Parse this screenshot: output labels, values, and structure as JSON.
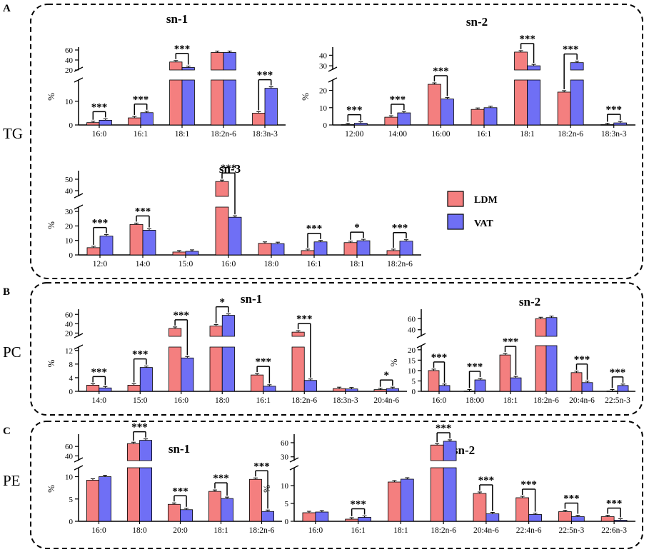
{
  "colors": {
    "ldm": "#f47f7f",
    "vat": "#6f6ff5",
    "axis": "#000000"
  },
  "legend": [
    {
      "name": "LDM",
      "color": "#f47f7f"
    },
    {
      "name": "VAT",
      "color": "#6f6ff5"
    }
  ],
  "panel_letters": [
    "A",
    "B",
    "C"
  ],
  "row_labels": {
    "tg": "TG",
    "pc": "PC",
    "pe": "PE"
  },
  "y_axis_label": "%",
  "chart_data": [
    {
      "id": "tg_sn1",
      "type": "bar",
      "title": "sn-1",
      "categories": [
        "16:0",
        "16:1",
        "18:1",
        "18:2n-6",
        "18:3n-3"
      ],
      "series": [
        {
          "name": "LDM",
          "values": [
            1,
            3,
            36,
            55,
            5
          ]
        },
        {
          "name": "VAT",
          "values": [
            2,
            5.2,
            25,
            55,
            15.5
          ]
        }
      ],
      "upper_ticks": [
        20,
        40,
        60
      ],
      "lower_ticks": [
        0,
        10
      ],
      "upper_range": [
        20,
        60
      ],
      "lower_range": [
        0,
        19
      ],
      "significance": [
        "***",
        "***",
        "***",
        "",
        "***"
      ]
    },
    {
      "id": "tg_sn2",
      "type": "bar",
      "title": "sn-2",
      "categories": [
        "12:00",
        "14:00",
        "16:00",
        "16:1",
        "18:1",
        "18:2n-6",
        "18:3n-3"
      ],
      "series": [
        {
          "name": "LDM",
          "values": [
            0.2,
            4.5,
            23.5,
            9,
            43,
            19,
            0.2
          ]
        },
        {
          "name": "VAT",
          "values": [
            1,
            7,
            15,
            10,
            30,
            33,
            1.2
          ]
        }
      ],
      "upper_ticks": [
        30,
        40
      ],
      "lower_ticks": [
        0,
        10,
        20
      ],
      "upper_range": [
        26,
        45
      ],
      "lower_range": [
        0,
        26
      ],
      "significance": [
        "***",
        "***",
        "***",
        "",
        "***",
        "***",
        "***"
      ]
    },
    {
      "id": "tg_sn3",
      "type": "bar",
      "title": "sn-3",
      "categories": [
        "12:0",
        "14:0",
        "15:0",
        "16:0",
        "18:0",
        "16:1",
        "18:1",
        "18:2n-6"
      ],
      "series": [
        {
          "name": "LDM",
          "values": [
            5,
            21,
            2,
            48,
            8,
            3,
            8.5,
            3
          ]
        },
        {
          "name": "VAT",
          "values": [
            13,
            17,
            2.5,
            26,
            7.8,
            9,
            9.8,
            9.5
          ]
        }
      ],
      "upper_ticks": [
        40,
        50
      ],
      "lower_ticks": [
        0,
        10,
        20,
        30
      ],
      "upper_range": [
        35,
        55
      ],
      "lower_range": [
        0,
        33
      ],
      "significance": [
        "***",
        "***",
        "",
        "***",
        "",
        "***",
        "*",
        "***"
      ]
    },
    {
      "id": "pc_sn1",
      "type": "bar",
      "title": "sn-1",
      "categories": [
        "14:0",
        "15:0",
        "16:0",
        "18:0",
        "16:1",
        "18:2n-6",
        "18:3n-3",
        "20:4n-6"
      ],
      "series": [
        {
          "name": "LDM",
          "values": [
            1.8,
            1.8,
            30,
            35,
            4.8,
            22,
            0.8,
            0.5
          ]
        },
        {
          "name": "VAT",
          "values": [
            1,
            7,
            9.8,
            58,
            1.5,
            3.2,
            0.7,
            0.8
          ]
        }
      ],
      "upper_ticks": [
        20,
        40,
        60
      ],
      "lower_ticks": [
        0,
        4,
        8,
        12
      ],
      "upper_range": [
        13,
        65
      ],
      "lower_range": [
        0,
        13
      ],
      "significance": [
        "***",
        "***",
        "***",
        "*",
        "***",
        "***",
        "",
        "*"
      ]
    },
    {
      "id": "pc_sn2",
      "type": "bar",
      "title": "sn-2",
      "categories": [
        "16:0",
        "18:00",
        "18:1",
        "18:2n-6",
        "20:4n-6",
        "22:5n-3"
      ],
      "series": [
        {
          "name": "LDM",
          "values": [
            10,
            0.2,
            17.5,
            60,
            9,
            0.2
          ]
        },
        {
          "name": "VAT",
          "values": [
            2.8,
            5.5,
            6.5,
            62,
            4.2,
            2.8
          ]
        }
      ],
      "upper_ticks": [
        40,
        60
      ],
      "lower_ticks": [
        0,
        5,
        10,
        15,
        20
      ],
      "upper_range": [
        28,
        72
      ],
      "lower_range": [
        0,
        22
      ],
      "significance": [
        "***",
        "***",
        "***",
        "",
        "***",
        "***"
      ]
    },
    {
      "id": "pe_sn1",
      "type": "bar",
      "title": "sn-1",
      "categories": [
        "16:0",
        "18:0",
        "20:0",
        "18:1",
        "18:2n-6"
      ],
      "series": [
        {
          "name": "LDM",
          "values": [
            9.2,
            66,
            3.8,
            6.7,
            9.4
          ]
        },
        {
          "name": "VAT",
          "values": [
            10,
            73,
            2.6,
            5.1,
            2.2
          ]
        }
      ],
      "upper_ticks": [
        40,
        60
      ],
      "lower_ticks": [
        0,
        5,
        10
      ],
      "upper_range": [
        30,
        80
      ],
      "lower_range": [
        0,
        12
      ],
      "significance": [
        "",
        "***",
        "***",
        "***",
        "***"
      ]
    },
    {
      "id": "pe_sn2",
      "type": "bar",
      "title": "sn-2",
      "categories": [
        "16:0",
        "16:1",
        "18:1",
        "18:2n-6",
        "20:4n-6",
        "22:4n-6",
        "22:5n-3",
        "22:6n-3"
      ],
      "series": [
        {
          "name": "LDM",
          "values": [
            2.4,
            0.6,
            11,
            55,
            7.8,
            6.6,
            2.7,
            1.3
          ]
        },
        {
          "name": "VAT",
          "values": [
            2.6,
            1.1,
            11.8,
            63,
            2.1,
            1.9,
            1.3,
            0.3
          ]
        }
      ],
      "upper_ticks": [
        30,
        60
      ],
      "lower_ticks": [
        0,
        5,
        10
      ],
      "upper_range": [
        22,
        72
      ],
      "lower_range": [
        0,
        15
      ],
      "significance": [
        "",
        "***",
        "",
        "***",
        "***",
        "***",
        "***",
        "***"
      ]
    }
  ]
}
